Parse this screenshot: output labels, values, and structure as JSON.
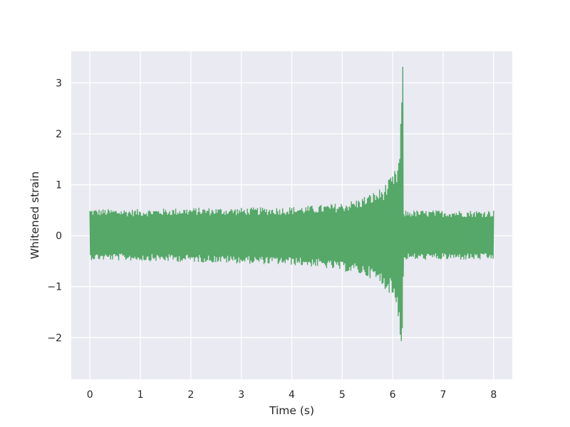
{
  "chart_data": {
    "type": "line",
    "title": "",
    "xlabel": "Time (s)",
    "ylabel": "Whitened strain",
    "xlim": [
      -0.37,
      8.37
    ],
    "ylim": [
      -2.82,
      3.62
    ],
    "xticks": [
      0,
      1,
      2,
      3,
      4,
      5,
      6,
      7,
      8
    ],
    "xtick_labels": [
      "0",
      "1",
      "2",
      "3",
      "4",
      "5",
      "6",
      "7",
      "8"
    ],
    "yticks": [
      -2,
      -1,
      0,
      1,
      2,
      3
    ],
    "ytick_labels": [
      "−2",
      "−1",
      "0",
      "1",
      "2",
      "3"
    ],
    "grid": true,
    "legend": "none",
    "background_color": "#eaeaf2",
    "grid_color": "#ffffff",
    "series": [
      {
        "color": "#55a868",
        "sample_interval": 0.01,
        "description_points": {
          "x": [
            0,
            1,
            2,
            3,
            4,
            4.5,
            5,
            5.3,
            5.6,
            5.8,
            6.0,
            6.1,
            6.15,
            6.19,
            6.2,
            6.21,
            6.22,
            6.25,
            7,
            8
          ],
          "upper": [
            0.53,
            0.52,
            0.55,
            0.55,
            0.57,
            0.6,
            0.65,
            0.72,
            0.85,
            0.95,
            1.2,
            1.4,
            1.9,
            3.33,
            3.33,
            1.0,
            0.5,
            0.5,
            0.5,
            0.5
          ],
          "lower": [
            -0.48,
            -0.5,
            -0.52,
            -0.55,
            -0.58,
            -0.62,
            -0.7,
            -0.75,
            -0.85,
            -1.0,
            -1.2,
            -1.5,
            -2.0,
            -2.5,
            -2.5,
            -0.9,
            -0.5,
            -0.48,
            -0.48,
            -0.48
          ]
        }
      }
    ]
  }
}
